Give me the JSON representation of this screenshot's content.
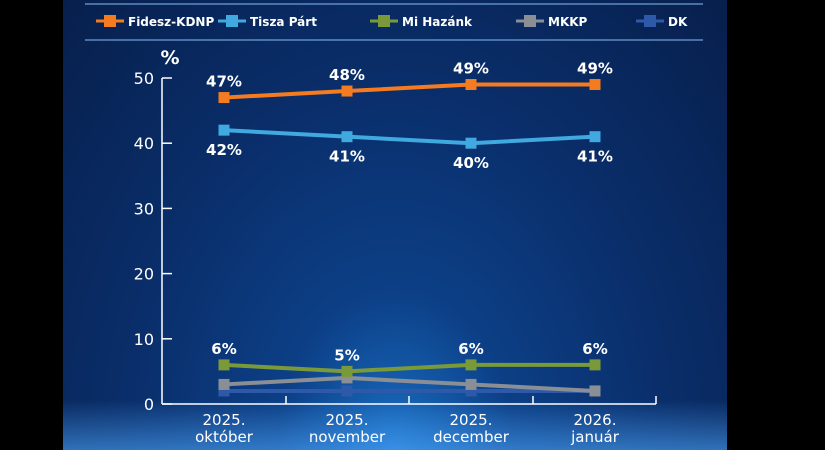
{
  "chart_data": {
    "type": "line",
    "ylabel": "%",
    "ylim": [
      0,
      50
    ],
    "yticks": [
      0,
      10,
      20,
      30,
      40,
      50
    ],
    "categories": [
      {
        "line1": "2025.",
        "line2": "október"
      },
      {
        "line1": "2025.",
        "line2": "november"
      },
      {
        "line1": "2025.",
        "line2": "december"
      },
      {
        "line1": "2026.",
        "line2": "január"
      }
    ],
    "legend_position": "top",
    "grid": false,
    "series": [
      {
        "name": "Fidesz-KDNP",
        "color": "#f47b20",
        "values": [
          47,
          48,
          49,
          49
        ],
        "labels": [
          "47%",
          "48%",
          "49%",
          "49%"
        ],
        "label_pos": "above"
      },
      {
        "name": "Tisza Párt",
        "color": "#3fa9e0",
        "values": [
          42,
          41,
          40,
          41
        ],
        "labels": [
          "42%",
          "41%",
          "40%",
          "41%"
        ],
        "label_pos": "below"
      },
      {
        "name": "Mi Hazánk",
        "color": "#7a9a3a",
        "values": [
          6,
          5,
          6,
          6
        ],
        "labels": [
          "6%",
          "5%",
          "6%",
          "6%"
        ],
        "label_pos": "above"
      },
      {
        "name": "MKKP",
        "color": "#8a8f96",
        "values": [
          3,
          4,
          3,
          2
        ],
        "labels": []
      },
      {
        "name": "DK",
        "color": "#2e58a8",
        "values": [
          2,
          2,
          2,
          2
        ],
        "labels": []
      }
    ]
  }
}
